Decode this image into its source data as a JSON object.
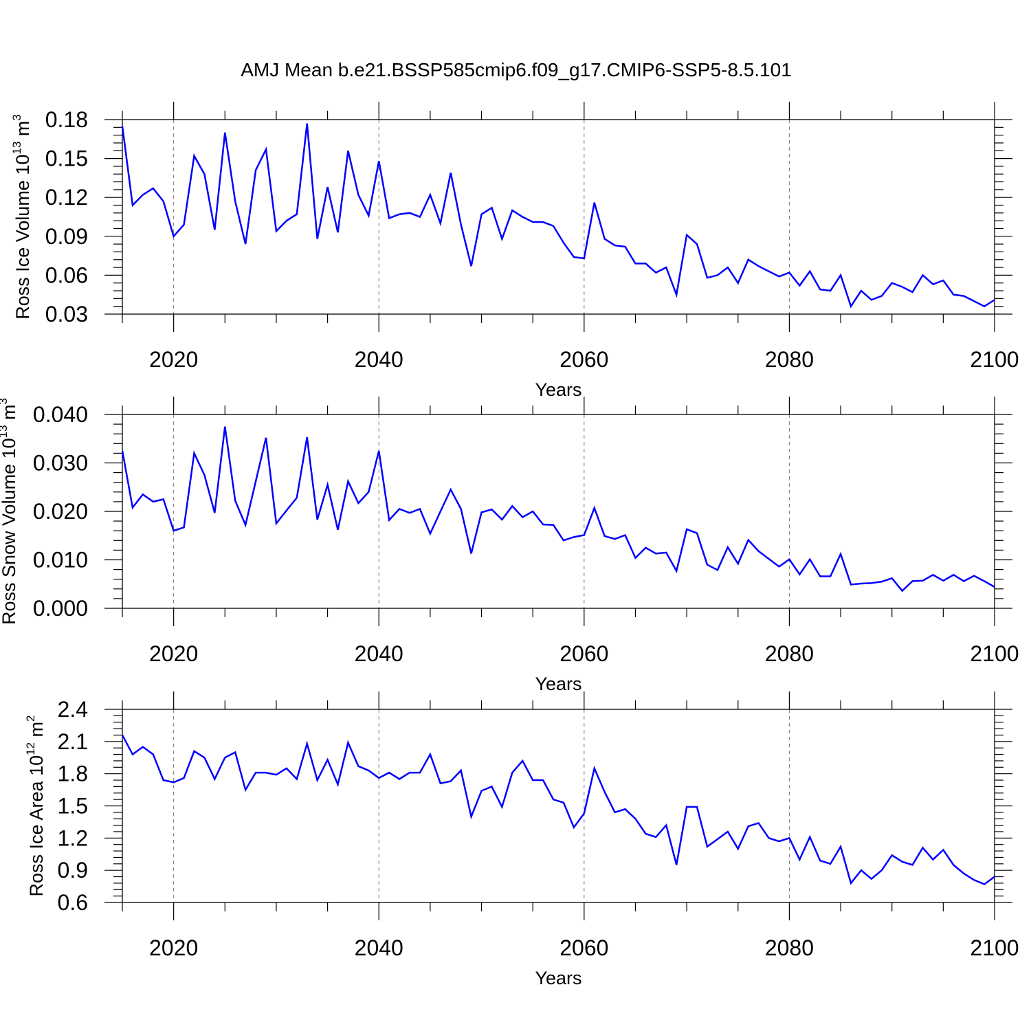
{
  "title": "AMJ Mean b.e21.BSSP585cmip6.f09_g17.CMIP6-SSP5-8.5.101",
  "colors": {
    "line": "#0000ff",
    "frame": "#000000",
    "grid": "#777777"
  },
  "chart_data": [
    {
      "type": "line",
      "title": "AMJ Mean b.e21.BSSP585cmip6.f09_g17.CMIP6-SSP5-8.5.101",
      "xlabel": "Years",
      "ylabel": {
        "main": "Ross Ice Volume 10",
        "exp": "13",
        "unit": " m",
        "unit_exp": "3"
      },
      "xlim": [
        2015,
        2100
      ],
      "ylim": [
        0.03,
        0.18
      ],
      "xticks": [
        2020,
        2040,
        2060,
        2080,
        2100
      ],
      "xtick_labels": [
        "2020",
        "2040",
        "2060",
        "2080",
        "2100"
      ],
      "yticks": [
        0.03,
        0.06,
        0.09,
        0.12,
        0.15,
        0.18
      ],
      "ytick_labels": [
        "0.03",
        "0.06",
        "0.09",
        "0.12",
        "0.15",
        "0.18"
      ],
      "grid": "x-dashed",
      "series": [
        {
          "name": "Ross Ice Volume",
          "x_start": 2015,
          "values": [
            0.175,
            0.114,
            0.122,
            0.127,
            0.117,
            0.09,
            0.099,
            0.152,
            0.138,
            0.095,
            0.17,
            0.117,
            0.084,
            0.141,
            0.157,
            0.094,
            0.102,
            0.107,
            0.177,
            0.088,
            0.128,
            0.093,
            0.156,
            0.122,
            0.106,
            0.148,
            0.104,
            0.107,
            0.108,
            0.105,
            0.122,
            0.1,
            0.139,
            0.099,
            0.067,
            0.107,
            0.112,
            0.088,
            0.11,
            0.105,
            0.101,
            0.101,
            0.098,
            0.085,
            0.074,
            0.073,
            0.116,
            0.088,
            0.083,
            0.082,
            0.069,
            0.069,
            0.062,
            0.066,
            0.045,
            0.091,
            0.084,
            0.058,
            0.06,
            0.066,
            0.054,
            0.072,
            0.067,
            0.063,
            0.059,
            0.062,
            0.052,
            0.063,
            0.049,
            0.048,
            0.06,
            0.036,
            0.048,
            0.041,
            0.044,
            0.054,
            0.051,
            0.047,
            0.06,
            0.053,
            0.056,
            0.045,
            0.044,
            0.04,
            0.036,
            0.041
          ]
        }
      ]
    },
    {
      "type": "line",
      "xlabel": "Years",
      "ylabel": {
        "main": "Ross Snow Volume 10",
        "exp": "13",
        "unit": " m",
        "unit_exp": "3"
      },
      "xlim": [
        2015,
        2100
      ],
      "ylim": [
        0.0,
        0.04
      ],
      "xticks": [
        2020,
        2040,
        2060,
        2080,
        2100
      ],
      "xtick_labels": [
        "2020",
        "2040",
        "2060",
        "2080",
        "2100"
      ],
      "yticks": [
        0.0,
        0.01,
        0.02,
        0.03,
        0.04
      ],
      "ytick_labels": [
        "0.000",
        "0.010",
        "0.020",
        "0.030",
        "0.040"
      ],
      "grid": "x-dashed",
      "series": [
        {
          "name": "Ross Snow Volume",
          "x_start": 2015,
          "values": [
            0.0325,
            0.0208,
            0.0235,
            0.022,
            0.0225,
            0.016,
            0.0167,
            0.032,
            0.0275,
            0.0197,
            0.0375,
            0.0222,
            0.0172,
            0.0262,
            0.0352,
            0.0175,
            0.0202,
            0.0228,
            0.0353,
            0.0183,
            0.0255,
            0.0162,
            0.0262,
            0.0217,
            0.024,
            0.0325,
            0.0182,
            0.0205,
            0.0197,
            0.0205,
            0.0154,
            0.02,
            0.0245,
            0.0205,
            0.0113,
            0.0198,
            0.0204,
            0.0183,
            0.0211,
            0.0188,
            0.02,
            0.0173,
            0.0172,
            0.014,
            0.0147,
            0.0151,
            0.0207,
            0.0149,
            0.0143,
            0.0151,
            0.0104,
            0.0125,
            0.0113,
            0.0115,
            0.0077,
            0.0163,
            0.0155,
            0.009,
            0.0079,
            0.0126,
            0.0092,
            0.0141,
            0.0118,
            0.0102,
            0.0086,
            0.0101,
            0.007,
            0.0101,
            0.0066,
            0.0066,
            0.0112,
            0.0049,
            0.0051,
            0.0052,
            0.0055,
            0.0062,
            0.0036,
            0.0056,
            0.0057,
            0.0069,
            0.0057,
            0.0069,
            0.0056,
            0.0067,
            0.0056,
            0.0044
          ]
        }
      ]
    },
    {
      "type": "line",
      "xlabel": "Years",
      "ylabel": {
        "main": "Ross Ice Area 10",
        "exp": "12",
        "unit": " m",
        "unit_exp": "2"
      },
      "xlim": [
        2015,
        2100
      ],
      "ylim": [
        0.6,
        2.4
      ],
      "xticks": [
        2020,
        2040,
        2060,
        2080,
        2100
      ],
      "xtick_labels": [
        "2020",
        "2040",
        "2060",
        "2080",
        "2100"
      ],
      "yticks": [
        0.6,
        0.9,
        1.2,
        1.5,
        1.8,
        2.1,
        2.4
      ],
      "ytick_labels": [
        "0.6",
        "0.9",
        "1.2",
        "1.5",
        "1.8",
        "2.1",
        "2.4"
      ],
      "grid": "x-dashed",
      "series": [
        {
          "name": "Ross Ice Area",
          "x_start": 2015,
          "values": [
            2.16,
            1.98,
            2.05,
            1.98,
            1.74,
            1.72,
            1.76,
            2.01,
            1.95,
            1.75,
            1.95,
            2.0,
            1.65,
            1.81,
            1.81,
            1.79,
            1.85,
            1.75,
            2.08,
            1.74,
            1.93,
            1.7,
            2.09,
            1.87,
            1.83,
            1.76,
            1.81,
            1.75,
            1.81,
            1.81,
            1.98,
            1.71,
            1.73,
            1.83,
            1.4,
            1.64,
            1.68,
            1.49,
            1.81,
            1.92,
            1.74,
            1.74,
            1.56,
            1.53,
            1.3,
            1.43,
            1.85,
            1.63,
            1.44,
            1.47,
            1.38,
            1.24,
            1.21,
            1.32,
            0.95,
            1.49,
            1.49,
            1.12,
            1.19,
            1.26,
            1.1,
            1.31,
            1.34,
            1.2,
            1.17,
            1.2,
            1.0,
            1.21,
            0.99,
            0.96,
            1.12,
            0.78,
            0.9,
            0.82,
            0.9,
            1.04,
            0.98,
            0.95,
            1.11,
            1.0,
            1.09,
            0.95,
            0.87,
            0.81,
            0.77,
            0.84
          ]
        }
      ]
    }
  ]
}
